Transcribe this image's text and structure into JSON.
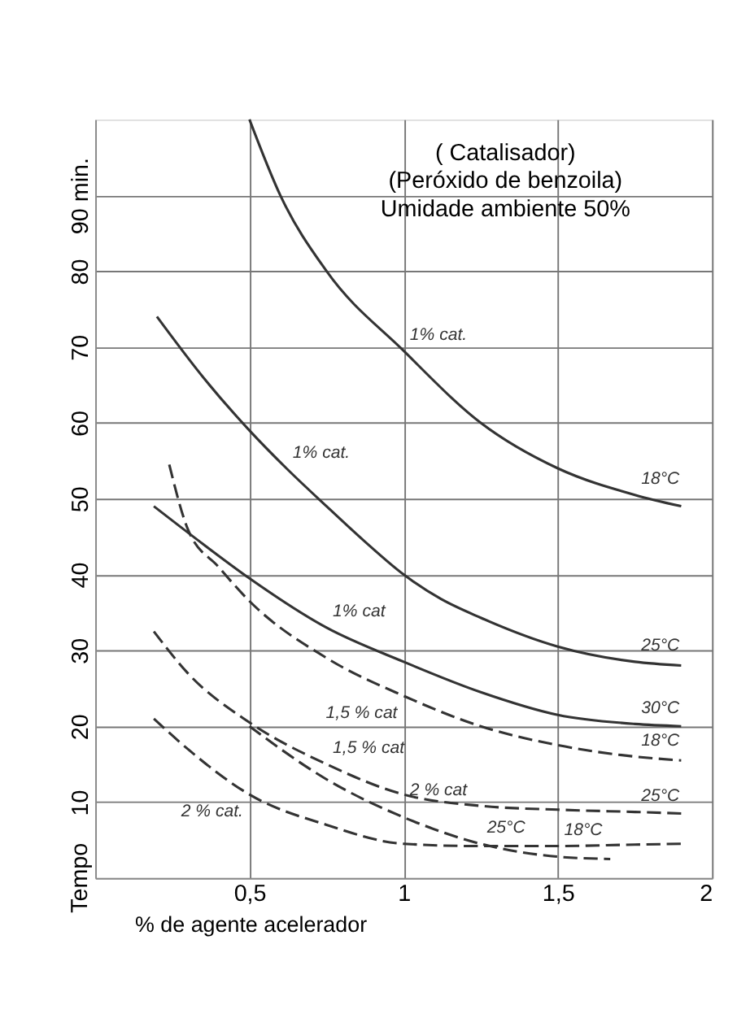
{
  "chart_data": {
    "type": "line",
    "xlabel": "% de agente acelerador",
    "ylabel": "Tempo",
    "xlim": [
      0,
      2
    ],
    "ylim": [
      0,
      100
    ],
    "xticks": [
      {
        "value": 0.5,
        "label": "0,5"
      },
      1,
      {
        "value": 1.5,
        "label": "1,5"
      },
      2
    ],
    "yticks": [
      10,
      20,
      30,
      40,
      50,
      60,
      70,
      80,
      {
        "value": 90,
        "label": "90 min."
      }
    ],
    "grid": true,
    "marker": "none",
    "series": [
      {
        "color": "#333333",
        "line_style": "solid",
        "x": [
          0.5,
          0.6,
          0.75,
          1,
          1.25,
          1.5,
          1.75,
          1.9
        ],
        "values": [
          100,
          90,
          80,
          69.5,
          60,
          54,
          50.5,
          49
        ]
      },
      {
        "color": "#333333",
        "line_style": "solid",
        "x": [
          0.2,
          0.35,
          0.5,
          0.62,
          0.75,
          0.87,
          1,
          1.12,
          1.25,
          1.5,
          1.75,
          1.9
        ],
        "values": [
          74,
          66,
          59,
          54,
          49,
          44.5,
          40,
          36.8,
          34.3,
          30.5,
          28.5,
          28
        ]
      },
      {
        "color": "#333333",
        "line_style": "solid",
        "x": [
          0.19,
          0.35,
          0.5,
          0.75,
          1,
          1.25,
          1.5,
          1.75,
          1.9
        ],
        "values": [
          49,
          44,
          39.5,
          33,
          28.5,
          24.5,
          21.5,
          20.3,
          20
        ]
      },
      {
        "color": "#333333",
        "line_style": "dashed",
        "x": [
          0.24,
          0.3,
          0.4,
          0.5,
          0.75,
          1,
          1.25,
          1.5,
          1.75,
          1.9
        ],
        "values": [
          54.5,
          46,
          41,
          36.5,
          29,
          24,
          20,
          17.5,
          16,
          15.5
        ]
      },
      {
        "color": "#333333",
        "line_style": "dashed",
        "x": [
          0.19,
          0.3,
          0.5,
          0.75,
          1,
          1.25,
          1.5,
          1.75,
          1.9
        ],
        "values": [
          32.5,
          27,
          20.5,
          15,
          11,
          9.5,
          9,
          8.7,
          8.5
        ]
      },
      {
        "color": "#333333",
        "line_style": "dashed",
        "x": [
          0.19,
          0.3,
          0.5,
          0.75,
          1,
          1.25,
          1.5,
          1.75,
          1.9
        ],
        "values": [
          21,
          17,
          11,
          7,
          4.5,
          4.2,
          4.2,
          4.4,
          4.5
        ]
      },
      {
        "color": "#333333",
        "line_style": "dashed",
        "x": [
          0.5,
          0.75,
          1,
          1.25,
          1.5,
          1.67
        ],
        "values": [
          20,
          13,
          8,
          4.5,
          2.8,
          2.5
        ]
      }
    ],
    "annotations": [
      "( Catalisador)",
      "(Peróxido de benzoila)",
      "Umidade ambiente 50%",
      {
        "text": "1% cat.",
        "x": 1,
        "y": 69.5
      },
      {
        "text": "18°C",
        "x": 1.75,
        "y": 50.5
      },
      {
        "text": "1% cat.",
        "x": 0.62,
        "y": 54
      },
      {
        "text": "25°C",
        "x": 1.75,
        "y": 28.5
      },
      {
        "text": "1% cat",
        "x": 0.75,
        "y": 33
      },
      {
        "text": "30°C",
        "x": 1.75,
        "y": 20.3
      },
      {
        "text": "1,5 % cat",
        "x": 1,
        "y": 24
      },
      {
        "text": "18°C",
        "x": 1.75,
        "y": 16
      },
      {
        "text": "1,5 % cat",
        "x": 0.75,
        "y": 15
      },
      {
        "text": "25°C",
        "x": 1.75,
        "y": 8.7
      },
      {
        "text": "2 % cat.",
        "x": 0.5,
        "y": 11
      },
      {
        "text": "2 % cat",
        "x": 1,
        "y": 8
      },
      {
        "text": "18°C",
        "x": 1.5,
        "y": 4.2
      },
      {
        "text": "25°C",
        "x": 1.25,
        "y": 4.5
      }
    ]
  }
}
